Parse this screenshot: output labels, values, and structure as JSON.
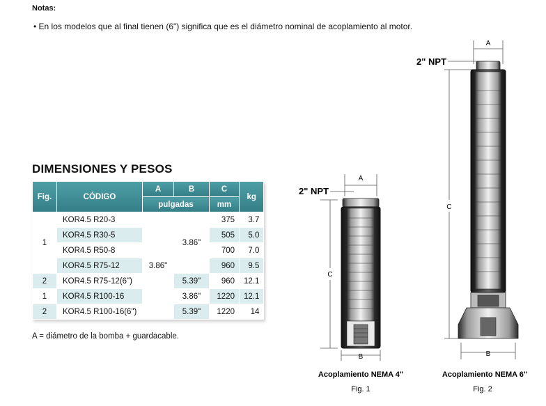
{
  "notes": {
    "title": "Notas:",
    "bullet": "• En los modelos que al final tienen (6\") significa que es el diámetro nominal de acoplamiento al motor."
  },
  "section_title": "DIMENSIONES Y PESOS",
  "table": {
    "headers": {
      "fig": "Fig.",
      "codigo": "CÓDIGO",
      "a": "A",
      "b": "B",
      "c": "C",
      "kg": "kg",
      "pulgadas": "pulgadas",
      "mm": "mm"
    },
    "rows": [
      {
        "code": "KOR4.5 R20-3",
        "c": "375",
        "kg": "3.7"
      },
      {
        "code": "KOR4.5 R30-5",
        "c": "505",
        "kg": "5.0"
      },
      {
        "code": "KOR4.5 R50-8",
        "c": "700",
        "kg": "7.0"
      },
      {
        "code": "KOR4.5 R75-12",
        "c": "960",
        "kg": "9.5"
      },
      {
        "fig": "2",
        "code": "KOR4.5 R75-12(6\")",
        "b": "5.39\"",
        "c": "960",
        "kg": "12.1"
      },
      {
        "fig": "1",
        "code": "KOR4.5 R100-16",
        "b": "3.86\"",
        "c": "1220",
        "kg": "12.1"
      },
      {
        "fig": "2",
        "code": "KOR4.5 R100-16(6\")",
        "b": "5.39\"",
        "c": "1220",
        "kg": "14"
      }
    ],
    "merged": {
      "fig_group": "1",
      "a_all": "3.86\"",
      "b_group": "3.86\""
    }
  },
  "footnote": "A = diámetro de la bomba + guardacable.",
  "figures": {
    "fig1": {
      "npt": "2\" NPT",
      "a": "A",
      "b": "B",
      "c": "C",
      "caption": "Acoplamiento NEMA 4\"",
      "label": "Fig. 1"
    },
    "fig2": {
      "npt": "2\" NPT",
      "a": "A",
      "b": "B",
      "c": "C",
      "caption": "Acoplamiento NEMA 6\"",
      "label": "Fig. 2"
    }
  }
}
